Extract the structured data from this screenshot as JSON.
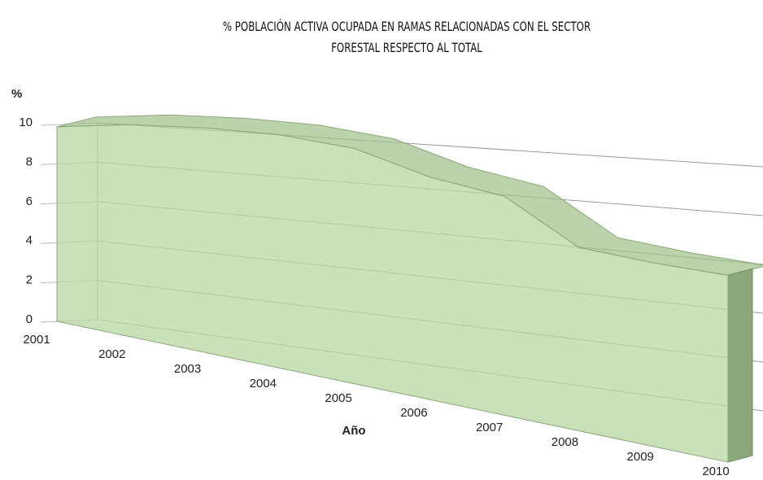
{
  "chart_data": {
    "type": "area3d",
    "title": "% POBLACIÓN ACTIVA OCUPADA EN RAMAS RELACIONADAS CON EL SECTOR FORESTAL RESPECTO AL TOTAL",
    "y_label": "%",
    "x_label": "Año",
    "categories": [
      "2001",
      "2002",
      "2003",
      "2004",
      "2005",
      "2006",
      "2007",
      "2008",
      "2009",
      "2010"
    ],
    "values": [
      9.8,
      9.3,
      8.7,
      8.1,
      7.4,
      6.4,
      5.8,
      4.5,
      4.2,
      4.0
    ],
    "color": "#b7d6a0",
    "ylim": [
      0,
      10
    ],
    "yticks": [
      0,
      2,
      4,
      6,
      8,
      10
    ],
    "grid": true
  }
}
